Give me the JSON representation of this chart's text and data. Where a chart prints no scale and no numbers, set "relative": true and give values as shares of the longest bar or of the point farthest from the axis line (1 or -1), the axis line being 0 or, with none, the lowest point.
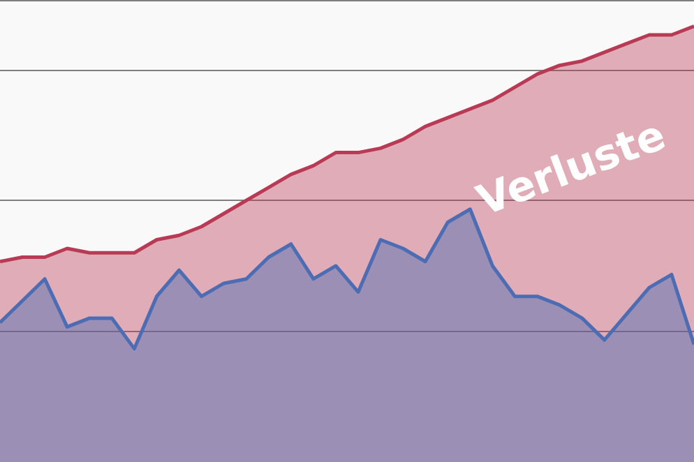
{
  "chart_data": {
    "type": "area",
    "relative": true,
    "grid": "y",
    "marker": "none",
    "annotations": [
      "Verluste"
    ],
    "categories": [
      null,
      null,
      null,
      null,
      null,
      null,
      null,
      null,
      null,
      null,
      null,
      null,
      null,
      null,
      null,
      null,
      null,
      null,
      null,
      null,
      null,
      null,
      null,
      null,
      null,
      null,
      null,
      null,
      null,
      null,
      null,
      null
    ],
    "series": [
      {
        "color": "#b83a55",
        "values": [
          0.46,
          0.47,
          0.47,
          0.49,
          0.48,
          0.48,
          0.48,
          0.51,
          0.52,
          0.54,
          0.57,
          0.6,
          0.63,
          0.66,
          0.68,
          0.71,
          0.71,
          0.72,
          0.74,
          0.77,
          0.79,
          0.81,
          0.83,
          0.86,
          0.89,
          0.91,
          0.92,
          0.94,
          0.96,
          0.98,
          0.98,
          1
        ]
      },
      {
        "color": "#4c6db3",
        "values": [
          0.32,
          0.37,
          0.42,
          0.31,
          0.33,
          0.33,
          0.26,
          0.38,
          0.44,
          0.38,
          0.41,
          0.42,
          0.47,
          0.5,
          0.42,
          0.45,
          0.39,
          0.51,
          0.49,
          0.46,
          0.55,
          0.58,
          0.45,
          0.38,
          0.38,
          0.36,
          0.33,
          0.28,
          0.34,
          0.4,
          0.43,
          0.27
        ]
      }
    ]
  }
}
